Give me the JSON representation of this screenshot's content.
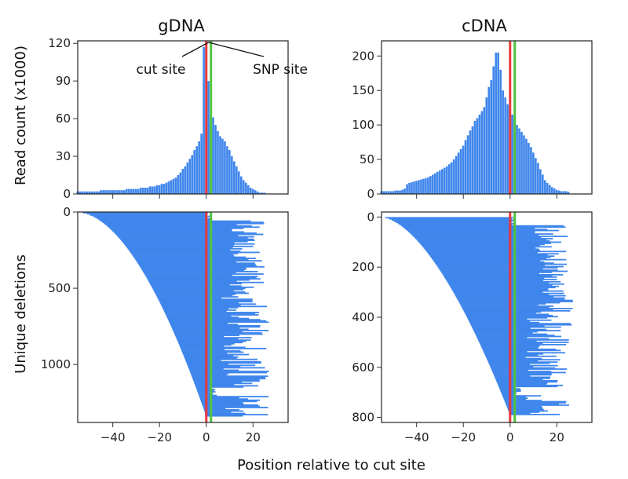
{
  "figure": {
    "ylabel_top": "Read count (x1000)",
    "ylabel_bottom": "Unique deletions",
    "xlabel": "Position relative to cut site",
    "colors": {
      "bars": "#3f86ec",
      "cut_line": "#e8363a",
      "snp_line": "#4fc43f",
      "frame": "#222222"
    }
  },
  "chart_data": [
    {
      "type": "bar",
      "title": "gDNA",
      "ylabel": "Read count (x1000)",
      "xlim": [
        -55,
        35
      ],
      "ylim": [
        0,
        122
      ],
      "yticks": [
        0,
        30,
        60,
        90,
        120
      ],
      "xticks": [
        -40,
        -20,
        0,
        20
      ],
      "cut_site": 0,
      "snp_site": 2,
      "annotations": [
        "cut site",
        "SNP site"
      ],
      "x": [
        -55,
        -54,
        -53,
        -52,
        -51,
        -50,
        -49,
        -48,
        -47,
        -46,
        -45,
        -44,
        -43,
        -42,
        -41,
        -40,
        -39,
        -38,
        -37,
        -36,
        -35,
        -34,
        -33,
        -32,
        -31,
        -30,
        -29,
        -28,
        -27,
        -26,
        -25,
        -24,
        -23,
        -22,
        -21,
        -20,
        -19,
        -18,
        -17,
        -16,
        -15,
        -14,
        -13,
        -12,
        -11,
        -10,
        -9,
        -8,
        -7,
        -6,
        -5,
        -4,
        -3,
        -2,
        -1,
        0,
        1,
        2,
        3,
        4,
        5,
        6,
        7,
        8,
        9,
        10,
        11,
        12,
        13,
        14,
        15,
        16,
        17,
        18,
        19,
        20,
        21,
        22,
        23,
        24,
        25
      ],
      "values": [
        2,
        2,
        2,
        2,
        2,
        2,
        2,
        2,
        2,
        2,
        3,
        3,
        3,
        3,
        3,
        3,
        3,
        3,
        3,
        3,
        3,
        4,
        4,
        4,
        4,
        4,
        4,
        5,
        5,
        5,
        5,
        6,
        6,
        6,
        7,
        7,
        8,
        8,
        9,
        10,
        11,
        12,
        13,
        15,
        17,
        20,
        22,
        25,
        28,
        31,
        35,
        38,
        42,
        48,
        117,
        115,
        90,
        61,
        61,
        55,
        50,
        46,
        44,
        42,
        38,
        35,
        30,
        26,
        22,
        18,
        14,
        11,
        9,
        7,
        5,
        4,
        3,
        2,
        1,
        1,
        1
      ]
    },
    {
      "type": "bar",
      "title": "cDNA",
      "ylabel": "Read count (x1000)",
      "xlim": [
        -55,
        35
      ],
      "ylim": [
        0,
        222
      ],
      "yticks": [
        0,
        50,
        100,
        150,
        200
      ],
      "xticks": [
        -40,
        -20,
        0,
        20
      ],
      "cut_site": 0,
      "snp_site": 2,
      "x": [
        -55,
        -54,
        -53,
        -52,
        -51,
        -50,
        -49,
        -48,
        -47,
        -46,
        -45,
        -44,
        -43,
        -42,
        -41,
        -40,
        -39,
        -38,
        -37,
        -36,
        -35,
        -34,
        -33,
        -32,
        -31,
        -30,
        -29,
        -28,
        -27,
        -26,
        -25,
        -24,
        -23,
        -22,
        -21,
        -20,
        -19,
        -18,
        -17,
        -16,
        -15,
        -14,
        -13,
        -12,
        -11,
        -10,
        -9,
        -8,
        -7,
        -6,
        -5,
        -4,
        -3,
        -2,
        -1,
        0,
        1,
        2,
        3,
        4,
        5,
        6,
        7,
        8,
        9,
        10,
        11,
        12,
        13,
        14,
        15,
        16,
        17,
        18,
        19,
        20,
        21,
        22,
        23,
        24,
        25
      ],
      "values": [
        4,
        4,
        4,
        4,
        4,
        4,
        5,
        5,
        5,
        6,
        8,
        14,
        16,
        17,
        18,
        19,
        20,
        21,
        22,
        23,
        24,
        26,
        28,
        30,
        32,
        34,
        36,
        38,
        40,
        43,
        46,
        50,
        55,
        60,
        65,
        70,
        78,
        85,
        92,
        98,
        106,
        110,
        115,
        120,
        126,
        140,
        155,
        165,
        185,
        205,
        205,
        180,
        150,
        140,
        130,
        122,
        115,
        108,
        100,
        95,
        90,
        85,
        80,
        74,
        68,
        60,
        52,
        45,
        36,
        28,
        20,
        16,
        13,
        10,
        8,
        6,
        5,
        4,
        4,
        4,
        3
      ]
    },
    {
      "type": "bar",
      "title": "",
      "orientation": "horizontal",
      "ylabel": "Unique deletions",
      "xlabel": "Position relative to cut site",
      "xlim": [
        -55,
        35
      ],
      "ylim": [
        1380,
        0
      ],
      "yticks": [
        0,
        500,
        1000
      ],
      "xticks": [
        -40,
        -20,
        0,
        20
      ],
      "cut_site": 0,
      "snp_site": 2,
      "deletion_count": 1340
    },
    {
      "type": "bar",
      "title": "",
      "orientation": "horizontal",
      "ylabel": "Unique deletions",
      "xlabel": "Position relative to cut site",
      "xlim": [
        -55,
        35
      ],
      "ylim": [
        820,
        -20
      ],
      "yticks": [
        0,
        200,
        400,
        600,
        800
      ],
      "xticks": [
        -40,
        -20,
        0,
        20
      ],
      "cut_site": 0,
      "snp_site": 2,
      "deletion_count": 790
    }
  ]
}
